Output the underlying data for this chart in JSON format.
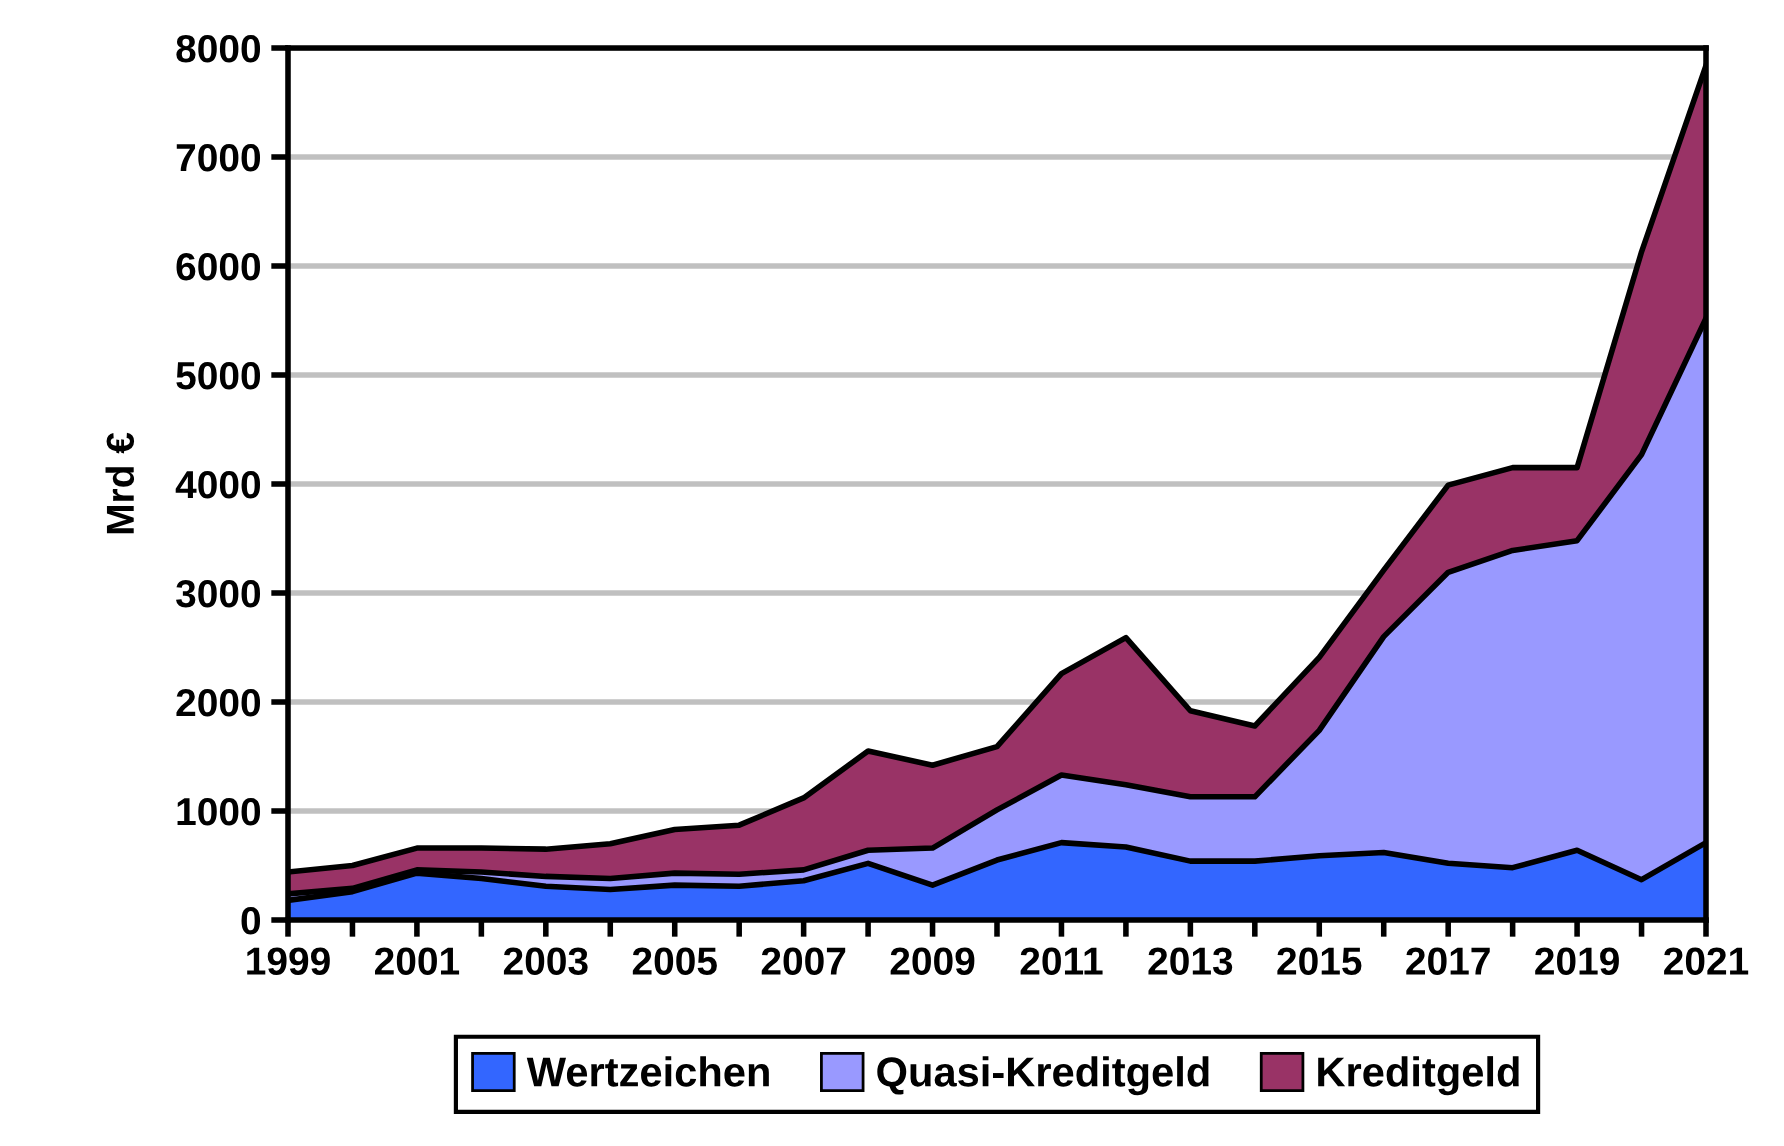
{
  "chart_data": {
    "type": "area",
    "stacked": true,
    "ylabel": "Mrd €",
    "x": [
      1999,
      2000,
      2001,
      2002,
      2003,
      2004,
      2005,
      2006,
      2007,
      2008,
      2009,
      2010,
      2011,
      2012,
      2013,
      2014,
      2015,
      2016,
      2017,
      2018,
      2019,
      2020,
      2021
    ],
    "series": [
      {
        "name": "Wertzeichen",
        "color": "#3366ff",
        "values": [
          180,
          260,
          430,
          380,
          310,
          280,
          320,
          310,
          360,
          520,
          320,
          550,
          710,
          670,
          540,
          540,
          590,
          620,
          520,
          480,
          640,
          370,
          710
        ]
      },
      {
        "name": "Quasi-Kreditgeld",
        "color": "#9999ff",
        "values": [
          60,
          30,
          30,
          60,
          90,
          100,
          110,
          110,
          100,
          120,
          340,
          460,
          620,
          570,
          590,
          590,
          1150,
          1980,
          2670,
          2910,
          2840,
          3900,
          4810
        ]
      },
      {
        "name": "Kreditgeld",
        "color": "#993366",
        "values": [
          200,
          210,
          200,
          220,
          250,
          320,
          400,
          450,
          660,
          910,
          760,
          580,
          930,
          1350,
          790,
          650,
          670,
          610,
          800,
          760,
          670,
          1860,
          2320
        ]
      }
    ],
    "xlim": [
      1999,
      2021
    ],
    "xticks": [
      1999,
      {
        "value": 2000,
        "label": null
      },
      2001,
      {
        "value": 2002,
        "label": null
      },
      2003,
      {
        "value": 2004,
        "label": null
      },
      2005,
      {
        "value": 2006,
        "label": null
      },
      2007,
      {
        "value": 2008,
        "label": null
      },
      2009,
      {
        "value": 2010,
        "label": null
      },
      2011,
      {
        "value": 2012,
        "label": null
      },
      2013,
      {
        "value": 2014,
        "label": null
      },
      2015,
      {
        "value": 2016,
        "label": null
      },
      2017,
      {
        "value": 2018,
        "label": null
      },
      2019,
      {
        "value": 2020,
        "label": null
      },
      2021
    ],
    "ylim": [
      0,
      8000
    ],
    "yticks": [
      0,
      1000,
      2000,
      3000,
      4000,
      5000,
      6000,
      7000,
      8000
    ],
    "grid": "y",
    "legend": "bottom"
  }
}
